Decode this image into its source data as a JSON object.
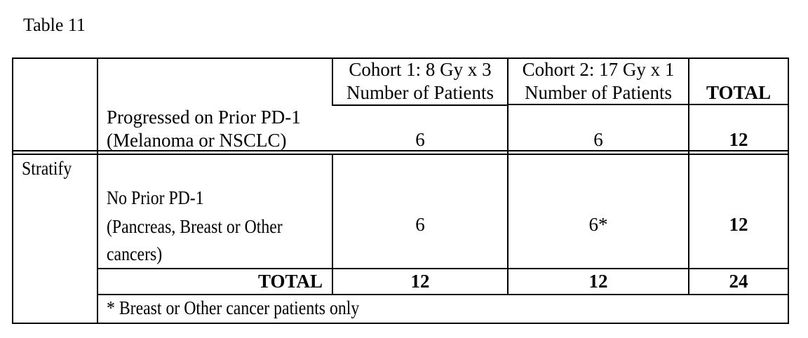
{
  "caption": "Table 11",
  "header": {
    "cohort1_line1": "Cohort 1: 8 Gy x 3",
    "cohort1_line2": "Number of Patients",
    "cohort2_line1": "Cohort 2: 17 Gy x 1",
    "cohort2_line2": "Number of Patients",
    "total": "TOTAL"
  },
  "stratify_label": "Stratify",
  "rows": [
    {
      "label_line1": "Progressed on Prior PD-1",
      "label_line2": "(Melanoma or NSCLC)",
      "cohort1": "6",
      "cohort2": "6",
      "total": "12"
    },
    {
      "label_line1": "No Prior PD-1",
      "label_line2": "(Pancreas, Breast or Other",
      "label_line3": "cancers)",
      "cohort1": "6",
      "cohort2": "6*",
      "total": "12"
    }
  ],
  "totals": {
    "label": "TOTAL",
    "cohort1": "12",
    "cohort2": "12",
    "total": "24"
  },
  "footnote": "* Breast or Other cancer patients only"
}
